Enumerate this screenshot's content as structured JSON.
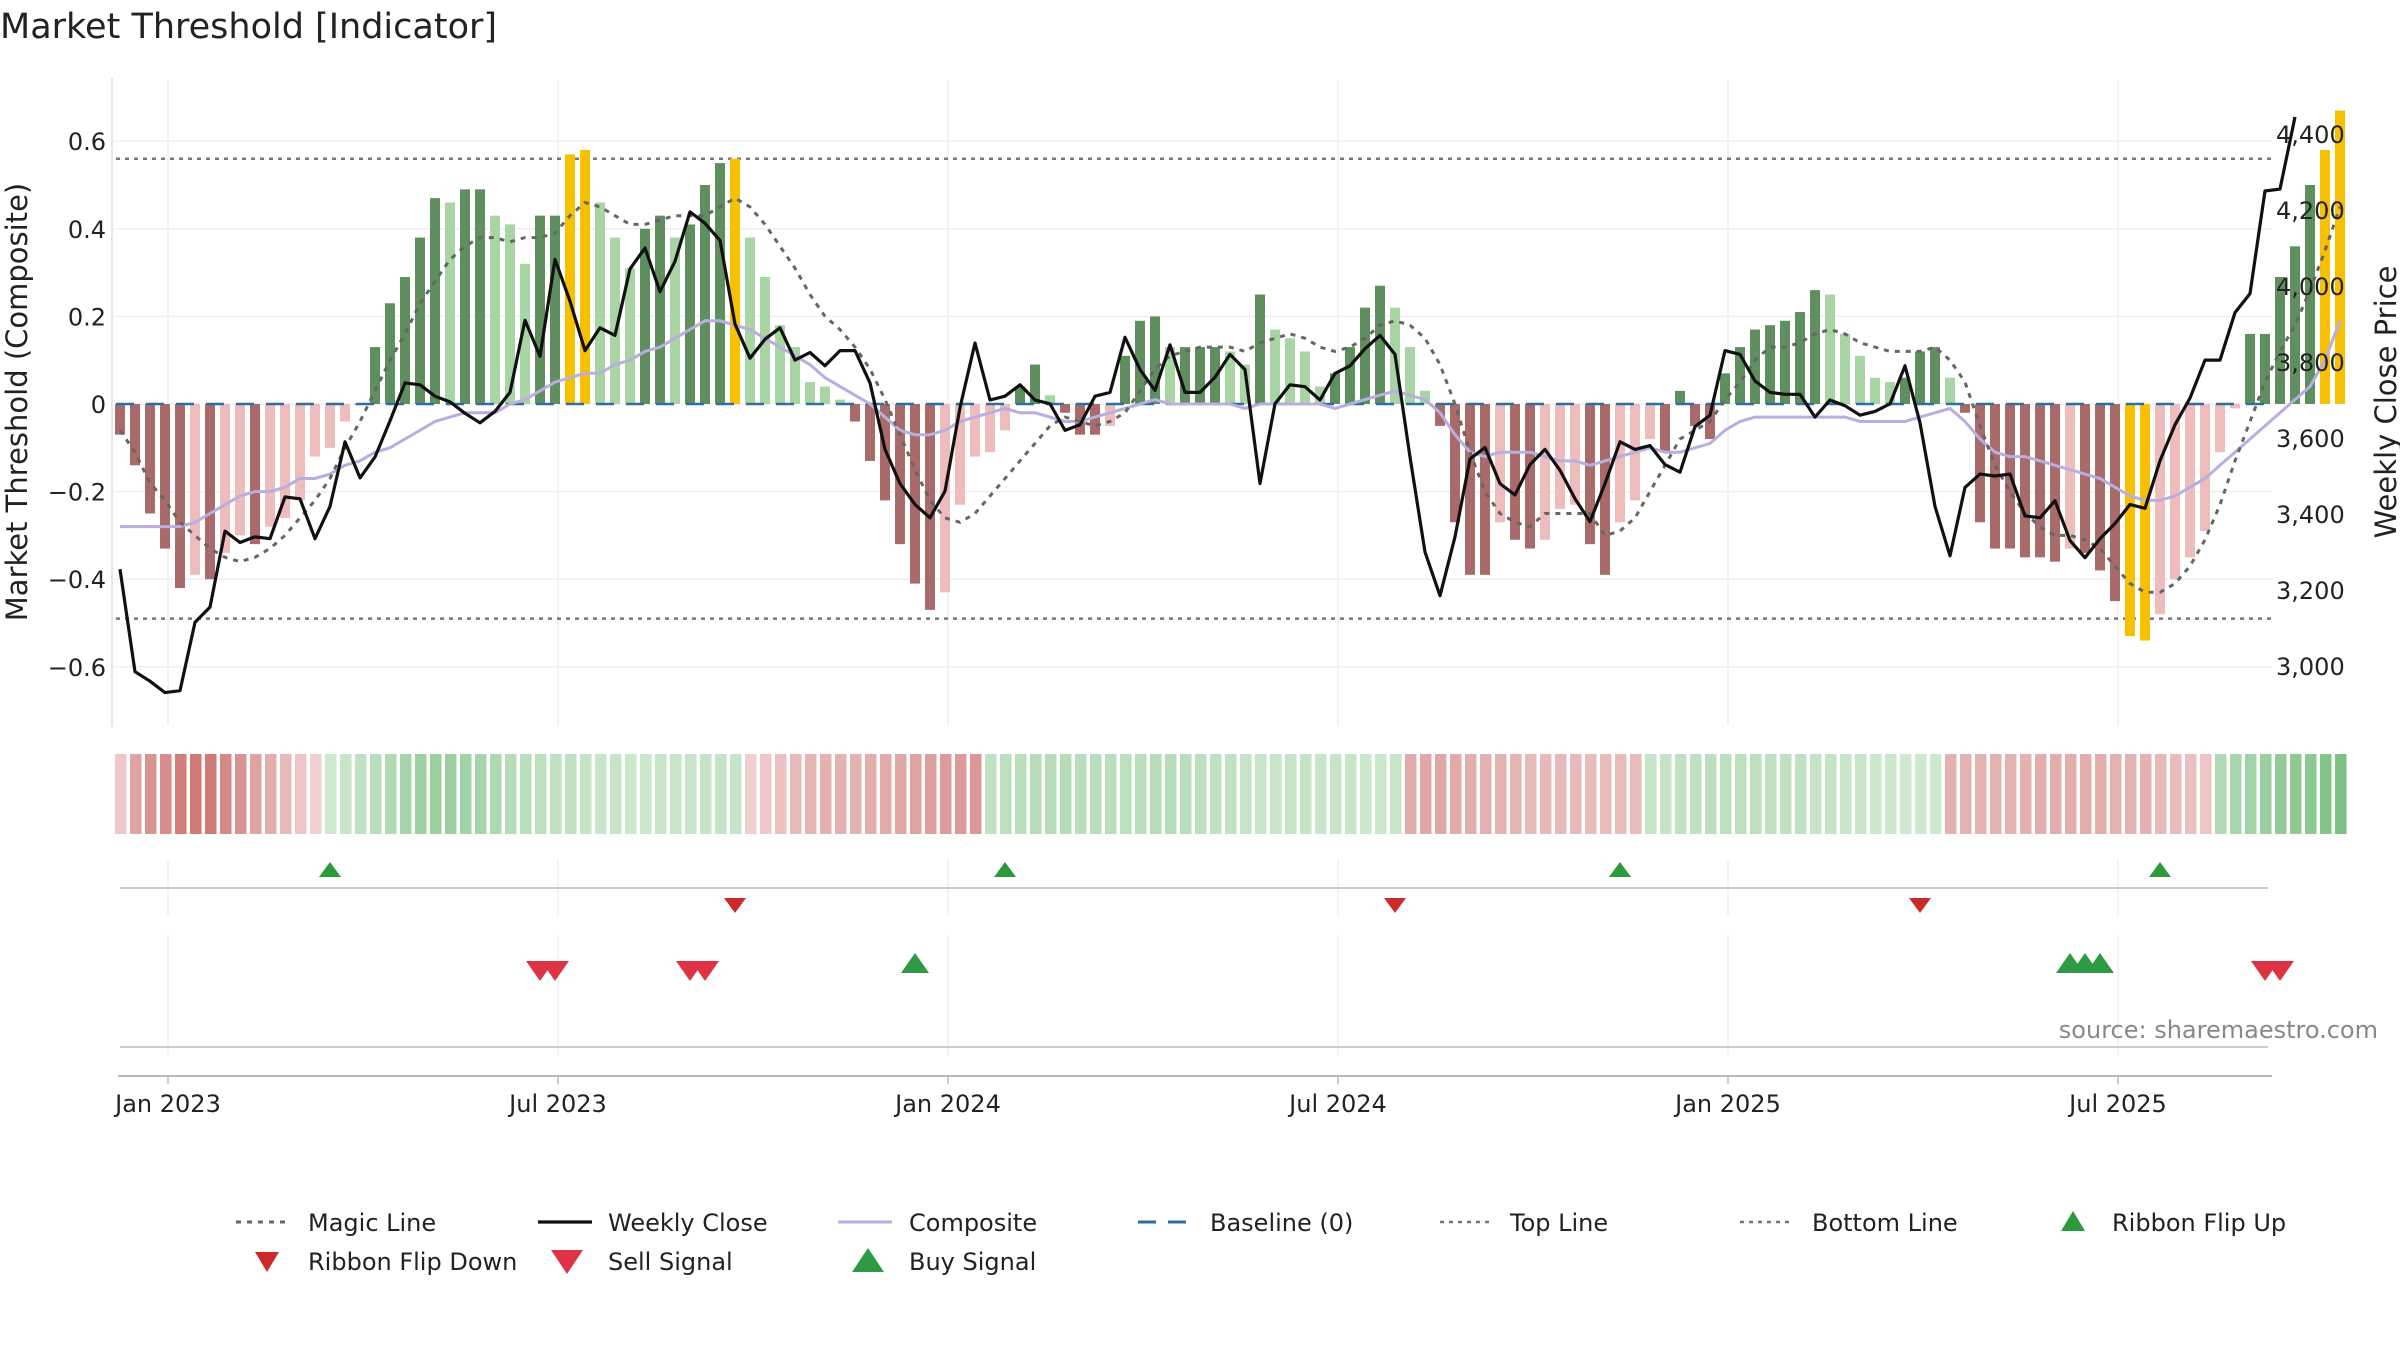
{
  "chart_data": {
    "type": "bar",
    "title": "Market Threshold [Indicator]",
    "ylabel": "Market Threshold (Composite)",
    "ylabel_right": "Weekly Close Price",
    "ylim": [
      -0.73,
      0.73
    ],
    "ylim_right": [
      2880,
      4510
    ],
    "yticks": [
      {
        "v": 0.6,
        "label": "0.6"
      },
      {
        "v": 0.4,
        "label": "0.4"
      },
      {
        "v": 0.2,
        "label": "0.2"
      },
      {
        "v": 0,
        "label": "0"
      },
      {
        "v": -0.2,
        "label": "−0.2"
      },
      {
        "v": -0.4,
        "label": "−0.4"
      },
      {
        "v": -0.6,
        "label": "−0.6"
      }
    ],
    "yticks_right": [
      {
        "v": 4400,
        "label": "4,400"
      },
      {
        "v": 4200,
        "label": "4,200"
      },
      {
        "v": 4000,
        "label": "4,000"
      },
      {
        "v": 3800,
        "label": "3,800"
      },
      {
        "v": 3600,
        "label": "3,600"
      },
      {
        "v": 3400,
        "label": "3,400"
      },
      {
        "v": 3200,
        "label": "3,200"
      },
      {
        "v": 3000,
        "label": "3,000"
      }
    ],
    "xticks": [
      {
        "week": 3,
        "label": "Jan 2023"
      },
      {
        "week": 29,
        "label": "Jul 2023"
      },
      {
        "week": 55,
        "label": "Jan 2024"
      },
      {
        "week": 81,
        "label": "Jul 2024"
      },
      {
        "week": 107,
        "label": "Jan 2025"
      },
      {
        "week": 133,
        "label": "Jul 2025"
      }
    ],
    "top_line": 0.56,
    "bottom_line": -0.49,
    "composite_bars": [
      -0.07,
      -0.14,
      -0.25,
      -0.33,
      -0.42,
      -0.39,
      -0.4,
      -0.34,
      -0.3,
      -0.32,
      -0.28,
      -0.26,
      -0.22,
      -0.12,
      -0.1,
      -0.04,
      0,
      0.13,
      0.23,
      0.29,
      0.38,
      0.47,
      0.46,
      0.49,
      0.49,
      0.43,
      0.41,
      0.32,
      0.43,
      0.43,
      0.57,
      0.58,
      0.46,
      0.38,
      0.31,
      0.4,
      0.43,
      0.38,
      0.41,
      0.5,
      0.55,
      0.56,
      0.38,
      0.29,
      0.18,
      0.13,
      0.05,
      0.04,
      0.01,
      -0.04,
      -0.13,
      -0.22,
      -0.32,
      -0.41,
      -0.47,
      -0.43,
      -0.23,
      -0.12,
      -0.11,
      -0.06,
      0.04,
      0.09,
      0.02,
      -0.02,
      -0.07,
      -0.07,
      -0.05,
      0.11,
      0.19,
      0.2,
      0.13,
      0.13,
      0.13,
      0.13,
      0.12,
      0.09,
      0.25,
      0.17,
      0.15,
      0.12,
      0.04,
      0.07,
      0.13,
      0.22,
      0.27,
      0.22,
      0.13,
      0.03,
      -0.05,
      -0.27,
      -0.39,
      -0.39,
      -0.27,
      -0.31,
      -0.33,
      -0.31,
      -0.24,
      -0.23,
      -0.32,
      -0.39,
      -0.27,
      -0.22,
      -0.08,
      -0.11,
      0.03,
      -0.05,
      -0.08,
      0.07,
      0.13,
      0.17,
      0.18,
      0.19,
      0.21,
      0.26,
      0.25,
      0.16,
      0.11,
      0.06,
      0.05,
      0.06,
      0.12,
      0.13,
      0.06,
      -0.02,
      -0.27,
      -0.33,
      -0.33,
      -0.35,
      -0.35,
      -0.36,
      -0.33,
      -0.34,
      -0.38,
      -0.45,
      -0.53,
      -0.54,
      -0.48,
      -0.4,
      -0.35,
      -0.29,
      -0.11,
      -0.01,
      0.16,
      0.16,
      0.29,
      0.36,
      0.5,
      0.58,
      0.67
    ],
    "weekly_close": [
      3255,
      2985,
      2960,
      2930,
      2935,
      3115,
      3155,
      3355,
      3325,
      3340,
      3335,
      3445,
      3440,
      3335,
      3420,
      3590,
      3495,
      3550,
      3645,
      3745,
      3740,
      3710,
      3695,
      3665,
      3640,
      3670,
      3720,
      3910,
      3815,
      4070,
      3960,
      3830,
      3890,
      3870,
      4045,
      4100,
      3985,
      4065,
      4195,
      4165,
      4120,
      3900,
      3810,
      3860,
      3890,
      3805,
      3825,
      3790,
      3830,
      3830,
      3745,
      3570,
      3480,
      3425,
      3390,
      3460,
      3680,
      3850,
      3700,
      3710,
      3740,
      3700,
      3690,
      3620,
      3635,
      3710,
      3720,
      3865,
      3780,
      3725,
      3845,
      3720,
      3720,
      3760,
      3820,
      3780,
      3480,
      3690,
      3740,
      3735,
      3700,
      3770,
      3790,
      3835,
      3870,
      3820,
      3550,
      3300,
      3185,
      3340,
      3545,
      3575,
      3480,
      3450,
      3530,
      3570,
      3515,
      3440,
      3380,
      3480,
      3590,
      3570,
      3580,
      3530,
      3510,
      3630,
      3660,
      3830,
      3820,
      3750,
      3720,
      3715,
      3715,
      3655,
      3700,
      3685,
      3660,
      3670,
      3690,
      3790,
      3640,
      3420,
      3290,
      3470,
      3505,
      3500,
      3505,
      3395,
      3390,
      3435,
      3330,
      3285,
      3335,
      3375,
      3425,
      3415,
      3540,
      3635,
      3705,
      3805,
      3805,
      3930,
      3980,
      4250,
      4255,
      4445
    ],
    "magic_line": [
      -0.06,
      -0.11,
      -0.18,
      -0.22,
      -0.27,
      -0.3,
      -0.33,
      -0.35,
      -0.36,
      -0.35,
      -0.33,
      -0.3,
      -0.26,
      -0.22,
      -0.17,
      -0.1,
      -0.04,
      0.03,
      0.1,
      0.16,
      0.23,
      0.28,
      0.33,
      0.36,
      0.38,
      0.38,
      0.37,
      0.38,
      0.38,
      0.39,
      0.43,
      0.46,
      0.45,
      0.43,
      0.41,
      0.41,
      0.42,
      0.43,
      0.43,
      0.43,
      0.45,
      0.47,
      0.45,
      0.41,
      0.36,
      0.31,
      0.25,
      0.2,
      0.17,
      0.13,
      0.08,
      0.01,
      -0.07,
      -0.15,
      -0.22,
      -0.26,
      -0.27,
      -0.25,
      -0.21,
      -0.17,
      -0.13,
      -0.09,
      -0.05,
      -0.03,
      -0.04,
      -0.05,
      -0.04,
      -0.02,
      0.03,
      0.08,
      0.11,
      0.12,
      0.13,
      0.13,
      0.13,
      0.12,
      0.14,
      0.15,
      0.16,
      0.15,
      0.13,
      0.12,
      0.13,
      0.15,
      0.18,
      0.19,
      0.18,
      0.15,
      0.09,
      0,
      -0.11,
      -0.2,
      -0.25,
      -0.27,
      -0.28,
      -0.25,
      -0.25,
      -0.25,
      -0.25,
      -0.3,
      -0.29,
      -0.26,
      -0.2,
      -0.14,
      -0.08,
      -0.06,
      -0.04,
      0.01,
      0.05,
      0.1,
      0.13,
      0.13,
      0.14,
      0.16,
      0.17,
      0.16,
      0.14,
      0.13,
      0.12,
      0.12,
      0.12,
      0.13,
      0.1,
      0.05,
      -0.05,
      -0.14,
      -0.2,
      -0.25,
      -0.28,
      -0.3,
      -0.3,
      -0.31,
      -0.33,
      -0.37,
      -0.41,
      -0.43,
      -0.43,
      -0.41,
      -0.37,
      -0.31,
      -0.23,
      -0.13,
      -0.04,
      0.05,
      0.12,
      0.18,
      0.26,
      0.35,
      0.45
    ],
    "composite_line": [
      -0.28,
      -0.28,
      -0.28,
      -0.28,
      -0.28,
      -0.27,
      -0.25,
      -0.23,
      -0.21,
      -0.2,
      -0.2,
      -0.19,
      -0.17,
      -0.17,
      -0.16,
      -0.14,
      -0.13,
      -0.11,
      -0.1,
      -0.08,
      -0.06,
      -0.04,
      -0.03,
      -0.02,
      -0.02,
      -0.02,
      0,
      0.01,
      0.03,
      0.05,
      0.06,
      0.07,
      0.07,
      0.09,
      0.1,
      0.12,
      0.13,
      0.15,
      0.17,
      0.19,
      0.19,
      0.18,
      0.17,
      0.15,
      0.13,
      0.11,
      0.09,
      0.06,
      0.04,
      0.02,
      0,
      -0.03,
      -0.06,
      -0.07,
      -0.07,
      -0.06,
      -0.04,
      -0.03,
      -0.02,
      -0.01,
      -0.02,
      -0.02,
      -0.03,
      -0.04,
      -0.04,
      -0.03,
      -0.02,
      -0.01,
      0,
      0.01,
      0,
      0,
      0,
      0,
      0,
      -0.01,
      0,
      0,
      0,
      0,
      0,
      -0.01,
      0,
      0.01,
      0.02,
      0.03,
      0.02,
      0.01,
      -0.02,
      -0.07,
      -0.11,
      -0.12,
      -0.11,
      -0.11,
      -0.11,
      -0.12,
      -0.13,
      -0.13,
      -0.14,
      -0.13,
      -0.12,
      -0.11,
      -0.1,
      -0.11,
      -0.11,
      -0.1,
      -0.09,
      -0.06,
      -0.04,
      -0.03,
      -0.03,
      -0.03,
      -0.03,
      -0.03,
      -0.03,
      -0.03,
      -0.04,
      -0.04,
      -0.04,
      -0.04,
      -0.03,
      -0.02,
      -0.01,
      -0.04,
      -0.08,
      -0.11,
      -0.12,
      -0.12,
      -0.13,
      -0.14,
      -0.15,
      -0.16,
      -0.17,
      -0.19,
      -0.21,
      -0.22,
      -0.22,
      -0.21,
      -0.19,
      -0.17,
      -0.14,
      -0.11,
      -0.08,
      -0.05,
      -0.02,
      0.01,
      0.04,
      0.1,
      0.19
    ],
    "ribbon": [
      -0.2,
      -0.45,
      -0.55,
      -0.6,
      -0.7,
      -0.72,
      -0.72,
      -0.62,
      -0.55,
      -0.45,
      -0.38,
      -0.3,
      -0.22,
      -0.15,
      0.15,
      0.2,
      0.25,
      0.3,
      0.35,
      0.42,
      0.48,
      0.5,
      0.5,
      0.45,
      0.42,
      0.38,
      0.32,
      0.3,
      0.28,
      0.25,
      0.25,
      0.22,
      0.2,
      0.2,
      0.18,
      0.18,
      0.2,
      0.2,
      0.2,
      0.22,
      0.22,
      0.2,
      -0.15,
      -0.2,
      -0.25,
      -0.3,
      -0.32,
      -0.35,
      -0.35,
      -0.35,
      -0.38,
      -0.4,
      -0.42,
      -0.45,
      -0.48,
      -0.5,
      -0.5,
      -0.52,
      0.25,
      0.28,
      0.3,
      0.32,
      0.32,
      0.33,
      0.3,
      0.3,
      0.3,
      0.28,
      0.3,
      0.32,
      0.32,
      0.3,
      0.28,
      0.25,
      0.25,
      0.22,
      0.2,
      0.2,
      0.22,
      0.22,
      0.2,
      0.2,
      0.2,
      0.18,
      0.18,
      0.2,
      -0.4,
      -0.42,
      -0.42,
      -0.4,
      -0.38,
      -0.36,
      -0.35,
      -0.32,
      -0.3,
      -0.3,
      -0.3,
      -0.3,
      -0.28,
      -0.28,
      -0.28,
      -0.28,
      0.22,
      0.22,
      0.25,
      0.26,
      0.28,
      0.28,
      0.28,
      0.28,
      0.26,
      0.25,
      0.25,
      0.22,
      0.22,
      0.2,
      0.2,
      0.18,
      0.18,
      0.15,
      0.15,
      0.15,
      -0.35,
      -0.35,
      -0.35,
      -0.35,
      -0.35,
      -0.35,
      -0.38,
      -0.38,
      -0.38,
      -0.38,
      -0.38,
      -0.35,
      -0.35,
      -0.35,
      -0.3,
      -0.28,
      -0.25,
      -0.22,
      0.35,
      0.4,
      0.45,
      0.5,
      0.55,
      0.58,
      0.6,
      0.65,
      0.7
    ],
    "ribbon_flips": [
      {
        "week": 14,
        "dir": "up"
      },
      {
        "week": 41,
        "dir": "down"
      },
      {
        "week": 59,
        "dir": "up"
      },
      {
        "week": 85,
        "dir": "down"
      },
      {
        "week": 100,
        "dir": "up"
      },
      {
        "week": 120,
        "dir": "down"
      },
      {
        "week": 136,
        "dir": "up"
      }
    ],
    "signals": [
      {
        "week": 28,
        "type": "sell"
      },
      {
        "week": 29,
        "type": "sell"
      },
      {
        "week": 38,
        "type": "sell"
      },
      {
        "week": 39,
        "type": "sell"
      },
      {
        "week": 53,
        "type": "buy"
      },
      {
        "week": 130,
        "type": "buy"
      },
      {
        "week": 131,
        "type": "buy"
      },
      {
        "week": 132,
        "type": "buy"
      },
      {
        "week": 143,
        "type": "sell"
      },
      {
        "week": 144,
        "type": "sell"
      }
    ],
    "colors": {
      "bull_strong": "#5f8f5f",
      "bull_weak": "#a8d5a3",
      "bear_strong": "#a96a6a",
      "bear_weak": "#efbcbc",
      "extreme": "#f7c000",
      "weekly_close": "#111111",
      "composite": "#b8aee0",
      "magic": "#666666",
      "baseline": "#2d6f9e",
      "threshold": "#777777",
      "flip_up": "#2a9a3a",
      "flip_down": "#cc2a2a",
      "buy": "#2e9a44",
      "sell": "#dd3344"
    },
    "legend": {
      "magic": "Magic Line",
      "weekly_close": "Weekly Close",
      "composite": "Composite",
      "baseline": "Baseline (0)",
      "top": "Top Line",
      "bottom": "Bottom Line",
      "flip_up": "Ribbon Flip Up",
      "flip_down": "Ribbon Flip Down",
      "sell": "Sell Signal",
      "buy": "Buy Signal"
    },
    "source": "source: sharemaestro.com",
    "grid": true,
    "legend_position": "bottom"
  }
}
